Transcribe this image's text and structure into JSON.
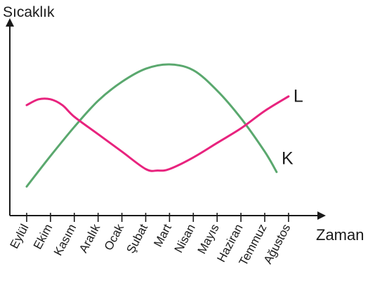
{
  "chart_data": {
    "type": "line",
    "ylabel": "Sıcaklık",
    "xlabel": "Zaman",
    "categories": [
      "Eylül",
      "Ekim",
      "Kasım",
      "Aralık",
      "Ocak",
      "Şubat",
      "Mart",
      "Nisan",
      "Mayıs",
      "Haziran",
      "Temmuz",
      "Ağustos"
    ],
    "series": [
      {
        "name": "K",
        "color": "#5aa86e",
        "x": [
          0,
          1,
          2,
          3,
          4,
          5,
          6,
          7,
          8,
          9,
          10,
          10.5
        ],
        "values": [
          1.0,
          2.05,
          3.05,
          3.95,
          4.6,
          5.05,
          5.2,
          5.0,
          4.3,
          3.35,
          2.2,
          1.5
        ]
      },
      {
        "name": "L",
        "color": "#e8237e",
        "x": [
          0,
          0.5,
          1,
          1.5,
          2,
          3,
          4,
          5,
          5.5,
          6,
          7,
          8,
          9,
          10,
          11
        ],
        "values": [
          3.8,
          4.0,
          4.0,
          3.8,
          3.4,
          2.8,
          2.2,
          1.6,
          1.55,
          1.6,
          2.0,
          2.5,
          3.0,
          3.6,
          4.1
        ]
      }
    ],
    "ylim": [
      0,
      6.5
    ],
    "grid": false,
    "legend": "series labels at right end of each line"
  }
}
